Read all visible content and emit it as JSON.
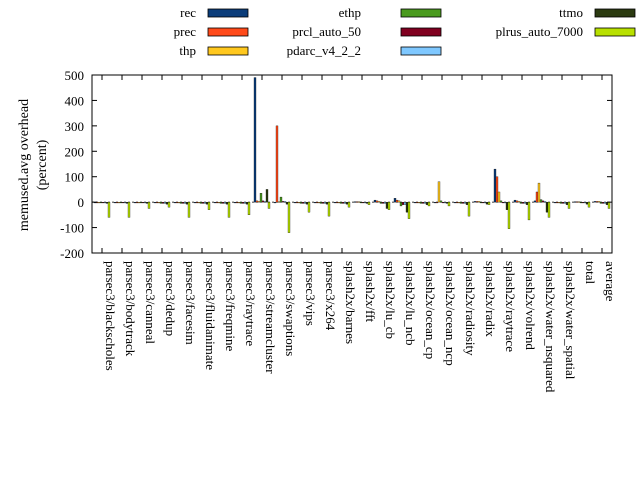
{
  "chart_data": {
    "type": "bar",
    "ylabel_line1": "memused.avg overhead",
    "ylabel_line2": "(percent)",
    "ylim": [
      -200,
      500
    ],
    "yticks": [
      500,
      400,
      300,
      200,
      100,
      0,
      -100,
      -200
    ],
    "legend_position": "top",
    "categories": [
      "parsec3/blackscholes",
      "parsec3/bodytrack",
      "parsec3/canneal",
      "parsec3/dedup",
      "parsec3/facesim",
      "parsec3/fluidanimate",
      "parsec3/freqmine",
      "parsec3/raytrace",
      "parsec3/streamcluster",
      "parsec3/swaptions",
      "parsec3/vips",
      "parsec3/x264",
      "splash2x/barnes",
      "splash2x/fft",
      "splash2x/lu_cb",
      "splash2x/lu_ncb",
      "splash2x/ocean_cp",
      "splash2x/ocean_ncp",
      "splash2x/radiosity",
      "splash2x/radix",
      "splash2x/raytrace",
      "splash2x/volrend",
      "splash2x/water_nsquared",
      "splash2x/water_spatial",
      "total",
      "average"
    ],
    "series": [
      {
        "name": "rec",
        "color": "#0b3d7a",
        "values": [
          -2,
          -2,
          -2,
          -3,
          -3,
          -3,
          -3,
          -3,
          490,
          -2,
          -2,
          -2,
          -3,
          2,
          8,
          15,
          -3,
          -3,
          -2,
          3,
          130,
          8,
          5,
          -2,
          2,
          3
        ]
      },
      {
        "name": "prec",
        "color": "#ff4a1a",
        "values": [
          -2,
          -2,
          -2,
          -3,
          -3,
          -3,
          -3,
          -3,
          5,
          300,
          -2,
          -2,
          -3,
          2,
          5,
          8,
          -3,
          -3,
          -2,
          3,
          100,
          5,
          40,
          -2,
          2,
          3
        ]
      },
      {
        "name": "thp",
        "color": "#ffc81e",
        "values": [
          -2,
          -2,
          -2,
          -3,
          -3,
          -3,
          -3,
          -3,
          3,
          2,
          -2,
          -2,
          -3,
          2,
          3,
          5,
          -3,
          80,
          -2,
          3,
          40,
          3,
          75,
          -2,
          2,
          3
        ]
      },
      {
        "name": "ethp",
        "color": "#4a9a1e",
        "values": [
          -3,
          -3,
          -3,
          -5,
          -5,
          -5,
          -5,
          -5,
          35,
          20,
          -5,
          -5,
          -5,
          -3,
          -5,
          -15,
          -5,
          5,
          -5,
          -3,
          5,
          -5,
          10,
          -5,
          -3,
          -5
        ]
      },
      {
        "name": "prcl_auto_50",
        "color": "#800020",
        "values": [
          -3,
          -3,
          -3,
          -5,
          -5,
          -5,
          -5,
          -5,
          5,
          3,
          -5,
          -5,
          -5,
          -3,
          -5,
          -10,
          -5,
          -3,
          -5,
          -3,
          -3,
          -5,
          5,
          -5,
          -3,
          -5
        ]
      },
      {
        "name": "pdarc_v4_2_2",
        "color": "#7fc8ff",
        "values": [
          -3,
          -3,
          -3,
          -5,
          -5,
          -5,
          -5,
          -5,
          3,
          3,
          -5,
          -5,
          -5,
          -3,
          -5,
          -10,
          -5,
          -3,
          -5,
          -3,
          -3,
          -5,
          3,
          -5,
          -3,
          -5
        ]
      },
      {
        "name": "ttmo",
        "color": "#2b3a10",
        "values": [
          -5,
          -5,
          -5,
          -8,
          -8,
          -8,
          -8,
          -8,
          50,
          -8,
          -8,
          -8,
          -8,
          -5,
          -25,
          -40,
          -10,
          -5,
          -10,
          -8,
          -30,
          -10,
          -40,
          -10,
          -8,
          -10
        ]
      },
      {
        "name": "plrus_auto_7000",
        "color": "#b8e000",
        "values": [
          -60,
          -60,
          -25,
          -20,
          -60,
          -30,
          -60,
          -50,
          -25,
          -120,
          -40,
          -55,
          -20,
          -10,
          -30,
          -65,
          -15,
          -15,
          -55,
          -10,
          -105,
          -70,
          -60,
          -25,
          -20,
          -25
        ]
      }
    ]
  }
}
